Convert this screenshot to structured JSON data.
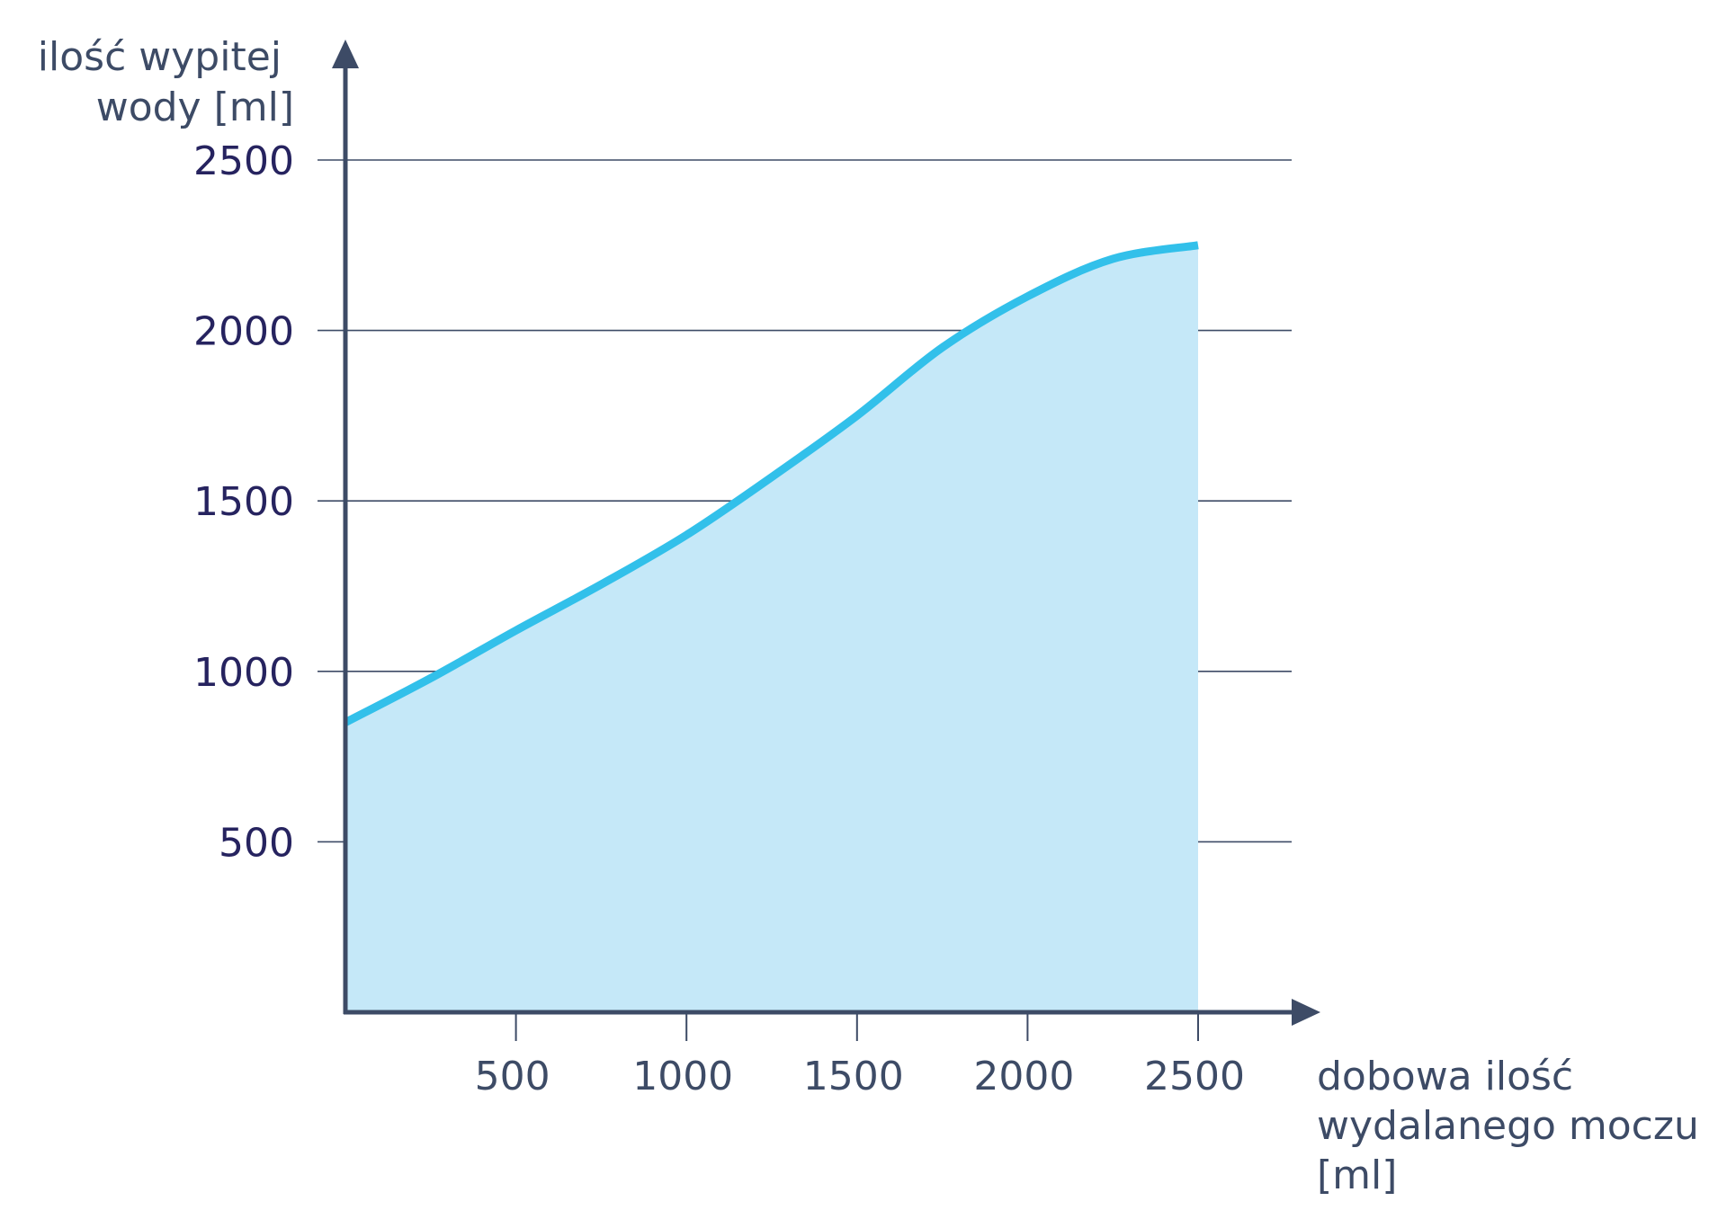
{
  "chart_data": {
    "type": "area",
    "title": "",
    "ylabel": [
      "ilość wypitej",
      "wody [ml]"
    ],
    "xlabel": [
      "dobowa ilość",
      "wydalanego moczu",
      "[ml]"
    ],
    "xlim": [
      0,
      2500
    ],
    "ylim": [
      0,
      2500
    ],
    "x_ticks": [
      500,
      1000,
      1500,
      2000,
      2500
    ],
    "y_ticks": [
      500,
      1000,
      1500,
      2000,
      2500
    ],
    "grid": "horizontal",
    "series": [
      {
        "x": [
          0,
          250,
          500,
          750,
          1000,
          1250,
          1500,
          1750,
          2000,
          2250,
          2500
        ],
        "y": [
          850,
          980,
          1120,
          1255,
          1400,
          1570,
          1750,
          1950,
          2100,
          2210,
          2250
        ]
      }
    ],
    "colors": {
      "line": "#32c0ea",
      "fill": "#c5e8f8",
      "axis": "#3d4b66",
      "grid": "#3d4b66"
    }
  }
}
